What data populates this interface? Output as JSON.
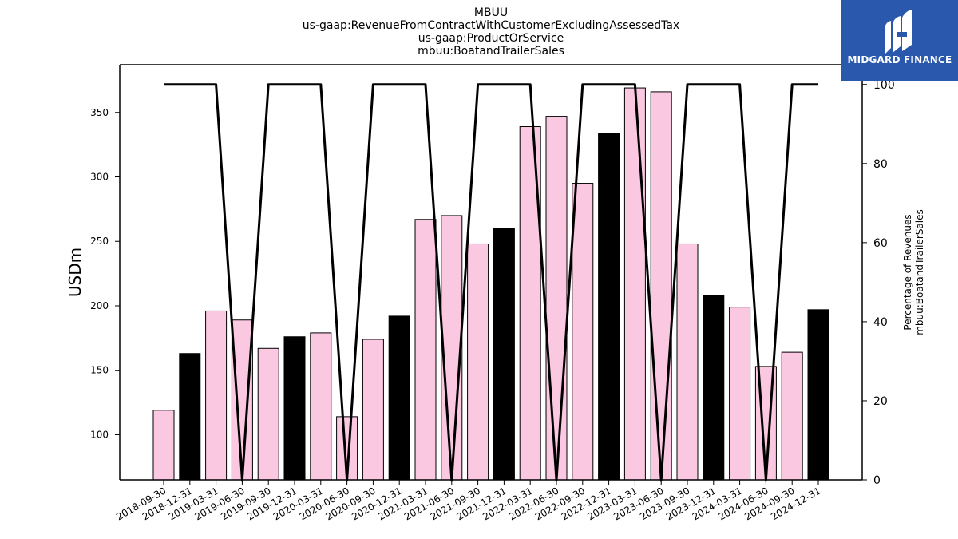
{
  "chart_data": {
    "type": "bar",
    "title_lines": [
      "MBUU",
      "us-gaap:RevenueFromContractWithCustomerExcludingAssessedTax",
      "us-gaap:ProductOrService",
      "mbuu:BoatandTrailerSales"
    ],
    "ylabel": "USDm",
    "ylabel_right": [
      "Percentage of Revenues",
      "mbuu:BoatandTrailerSales"
    ],
    "ylim": [
      65,
      387
    ],
    "ylim_right": [
      0,
      105
    ],
    "yticks": [
      100,
      150,
      200,
      250,
      300,
      350
    ],
    "yticks_right": [
      0,
      20,
      40,
      60,
      80,
      100
    ],
    "colors": {
      "quarter_bar": "#fbc8e2",
      "annual_bar": "#000000",
      "line": "#000000",
      "logo_bg": "#2a58ad"
    },
    "categories": [
      "2018-09-30",
      "2018-12-31",
      "2019-03-31",
      "2019-06-30",
      "2019-09-30",
      "2019-12-31",
      "2020-03-31",
      "2020-06-30",
      "2020-09-30",
      "2020-12-31",
      "2021-03-31",
      "2021-06-30",
      "2021-09-30",
      "2021-12-31",
      "2022-03-31",
      "2022-06-30",
      "2022-09-30",
      "2022-12-31",
      "2023-03-31",
      "2023-06-30",
      "2023-09-30",
      "2023-12-31",
      "2024-03-31",
      "2024-06-30",
      "2024-09-30",
      "2024-12-31"
    ],
    "series": [
      {
        "kind": "bar",
        "axis": "left",
        "values": [
          119,
          163,
          196,
          189,
          167,
          176,
          179,
          114,
          174,
          192,
          267,
          270,
          248,
          260,
          339,
          347,
          295,
          334,
          369,
          366,
          248,
          208,
          199,
          153,
          164,
          197
        ],
        "highlight": [
          false,
          true,
          false,
          false,
          false,
          true,
          false,
          false,
          false,
          true,
          false,
          false,
          false,
          true,
          false,
          false,
          false,
          true,
          false,
          false,
          false,
          true,
          false,
          false,
          false,
          true
        ]
      },
      {
        "kind": "line",
        "axis": "right",
        "values": [
          100,
          100,
          100,
          0,
          100,
          100,
          100,
          0,
          100,
          100,
          100,
          0,
          100,
          100,
          100,
          0,
          100,
          100,
          100,
          0,
          100,
          100,
          100,
          0,
          100,
          100
        ]
      }
    ],
    "grid": false
  },
  "logo": {
    "text": "MIDGARD FINANCE",
    "icon": "midgard-logo-icon"
  }
}
